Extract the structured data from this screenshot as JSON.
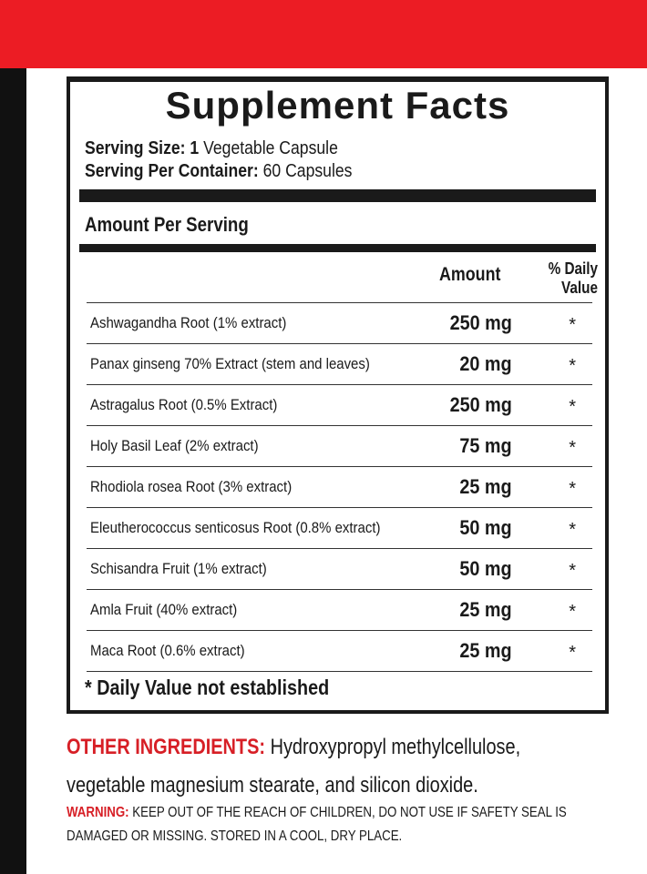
{
  "colors": {
    "top_bar": "#ec1c24",
    "left_strip": "#111111",
    "accent_text": "#d71f26"
  },
  "label": {
    "title": "Supplement Facts",
    "serving_size_label": "Serving Size:",
    "serving_size_value": "1",
    "serving_size_unit": "Vegetable Capsule",
    "servings_per_container_label": "Serving Per Container:",
    "servings_per_container_value": "60 Capsules",
    "amount_per_serving": "Amount Per Serving",
    "col_amount": "Amount",
    "col_dv_line1": "% Daily",
    "col_dv_line2": "Value",
    "ingredients": [
      {
        "name": "Ashwagandha Root (1% extract)",
        "amount": "250 mg",
        "dv": "*"
      },
      {
        "name": "Panax ginseng 70% Extract (stem and leaves)",
        "amount": "20 mg",
        "dv": "*"
      },
      {
        "name": "Astragalus Root (0.5% Extract)",
        "amount": "250 mg",
        "dv": "*"
      },
      {
        "name": "Holy Basil Leaf (2% extract)",
        "amount": "75 mg",
        "dv": "*"
      },
      {
        "name": "Rhodiola rosea Root (3% extract)",
        "amount": "25 mg",
        "dv": "*"
      },
      {
        "name": "Eleutherococcus senticosus Root (0.8% extract)",
        "amount": "50 mg",
        "dv": "*"
      },
      {
        "name": "Schisandra Fruit (1% extract)",
        "amount": "50 mg",
        "dv": "*"
      },
      {
        "name": "Amla Fruit (40% extract)",
        "amount": "25 mg",
        "dv": "*"
      },
      {
        "name": "Maca Root (0.6% extract)",
        "amount": "25 mg",
        "dv": "*"
      }
    ],
    "footnote": "* Daily Value not established"
  },
  "other_ingredients": {
    "label": "OTHER INGREDIENTS:",
    "text": "Hydroxypropyl methylcellulose, vegetable magnesium stearate, and silicon dioxide."
  },
  "warning": {
    "label": "WARNING:",
    "text": "KEEP OUT OF THE REACH OF CHILDREN, DO NOT USE IF SAFETY SEAL IS DAMAGED OR MISSING. STORED IN A COOL, DRY PLACE."
  }
}
